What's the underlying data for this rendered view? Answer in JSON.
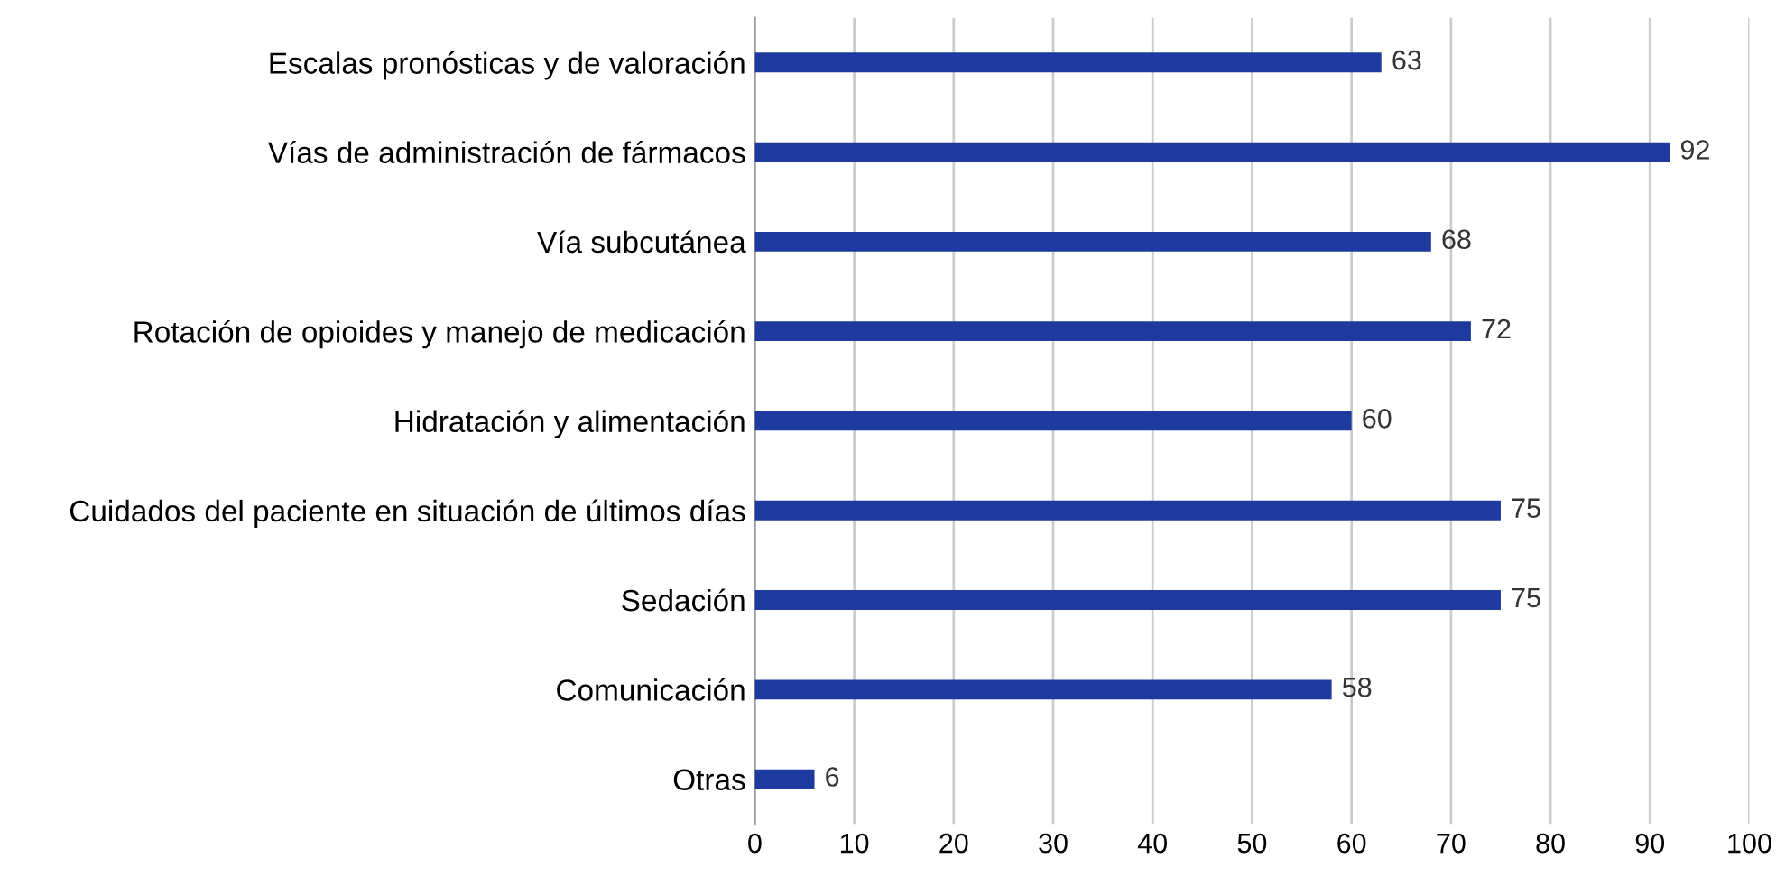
{
  "chart_data": {
    "type": "bar",
    "orientation": "horizontal",
    "categories": [
      "Escalas pronósticas y de valoración",
      "Vías de administración de fármacos",
      "Vía subcutánea",
      "Rotación de opioides y manejo de medicación",
      "Hidratación y alimentación",
      "Cuidados del paciente en situación de últimos días",
      "Sedación",
      "Comunicación",
      "Otras"
    ],
    "values": [
      63,
      92,
      68,
      72,
      60,
      75,
      75,
      58,
      6
    ],
    "color": "#1f3a9e",
    "xlim": [
      0,
      100
    ],
    "xticks": [
      0,
      10,
      20,
      30,
      40,
      50,
      60,
      70,
      80,
      90,
      100
    ],
    "grid": "x",
    "data_labels": true
  }
}
